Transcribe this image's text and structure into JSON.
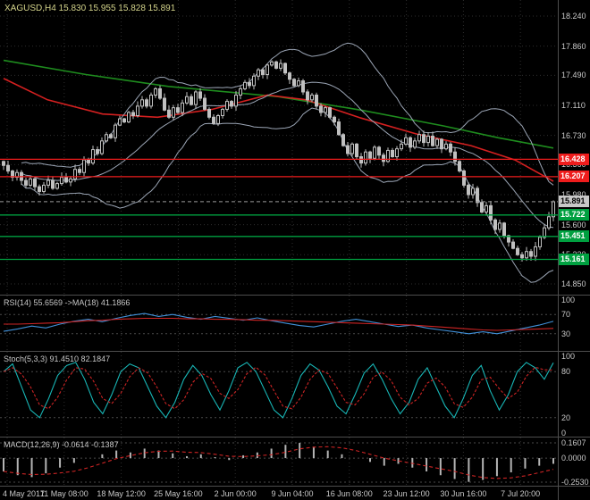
{
  "header": {
    "title": "XAGUSD,H4 15.830 15.955 15.828 15.891"
  },
  "main_chart": {
    "y_ticks": [
      "18.240",
      "17.860",
      "17.490",
      "17.110",
      "16.730",
      "16.360",
      "15.980",
      "15.600",
      "15.220",
      "14.850"
    ]
  },
  "indicators": {
    "rsi": {
      "label": "RSI(14) 55.6569",
      "ma_label": "->MA(18) 41.1866",
      "ticks": [
        "100",
        "70",
        "30"
      ]
    },
    "stoch": {
      "label": "Stoch(5,3,3) 91.4510 82.1847",
      "ticks": [
        "100",
        "80",
        "20",
        "0"
      ]
    },
    "macd": {
      "label": "MACD(12,26,9) -0.0614 -0.1387",
      "ticks": [
        "0.1607",
        "0.0000",
        "-0.2530"
      ]
    }
  },
  "x_axis": {
    "labels": [
      "4 May 2017",
      "11 May 08:00",
      "18 May 12:00",
      "25 May 16:00",
      "2 Jun 00:00",
      "9 Jun 04:00",
      "16 Jun 08:00",
      "23 Jun 12:00",
      "30 Jun 16:00",
      "7 Jul 20:00"
    ]
  },
  "colors": {
    "background": "#000000",
    "grid": "#2e2e2e",
    "candle": "#c0c0c0",
    "bands": "#9ba5b5",
    "red_ma": "#d42020",
    "green_ma": "#1e8c1e",
    "resistance": "#ee1c1c",
    "support": "#00a040",
    "bid_box": "#c8c8c8",
    "rsi": "#4090d8",
    "rsi_ma": "#cc2424",
    "stoch_k": "#18b6b6",
    "stoch_d": "#cc2424",
    "macd_hist": "#b4b4b4",
    "macd_signal": "#cc2424",
    "axis_text": "#c9c9c9",
    "title_text": "#d2d28a",
    "separator": "#4d4d4d"
  },
  "chart_data": {
    "type": "candlestick",
    "symbol": "XAGUSD",
    "timeframe": "H4",
    "title": "XAGUSD,H4",
    "current_ohlc": {
      "open": 15.83,
      "high": 15.955,
      "low": 15.828,
      "close": 15.891
    },
    "ylim": [
      14.85,
      18.24
    ],
    "closes": [
      16.35,
      16.28,
      16.2,
      16.26,
      16.16,
      16.1,
      16.18,
      16.08,
      16.02,
      16.1,
      16.16,
      16.06,
      16.12,
      16.2,
      16.14,
      16.18,
      16.3,
      16.26,
      16.42,
      16.38,
      16.55,
      16.5,
      16.66,
      16.74,
      16.7,
      16.86,
      16.94,
      16.9,
      17.02,
      16.98,
      17.1,
      17.18,
      17.1,
      17.24,
      17.32,
      17.2,
      17.05,
      16.96,
      17.08,
      17.02,
      17.14,
      17.22,
      17.12,
      17.28,
      17.2,
      17.06,
      16.96,
      16.88,
      16.98,
      17.06,
      17.16,
      17.1,
      17.24,
      17.32,
      17.4,
      17.36,
      17.48,
      17.56,
      17.5,
      17.62,
      17.66,
      17.58,
      17.64,
      17.52,
      17.44,
      17.36,
      17.42,
      17.28,
      17.18,
      17.24,
      17.1,
      17.02,
      17.08,
      16.96,
      16.9,
      16.74,
      16.6,
      16.5,
      16.62,
      16.46,
      16.38,
      16.52,
      16.44,
      16.58,
      16.48,
      16.4,
      16.54,
      16.46,
      16.56,
      16.62,
      16.7,
      16.58,
      16.66,
      16.74,
      16.64,
      16.72,
      16.6,
      16.68,
      16.56,
      16.62,
      16.52,
      16.4,
      16.28,
      16.1,
      15.98,
      16.06,
      15.88,
      15.76,
      15.84,
      15.66,
      15.54,
      15.62,
      15.46,
      15.38,
      15.3,
      15.22,
      15.18,
      15.26,
      15.2,
      15.32,
      15.44,
      15.56,
      15.7,
      15.89
    ],
    "overlays": {
      "red_ma": [
        [
          0,
          17.45
        ],
        [
          0.08,
          17.18
        ],
        [
          0.18,
          17.0
        ],
        [
          0.28,
          16.96
        ],
        [
          0.38,
          17.06
        ],
        [
          0.48,
          17.24
        ],
        [
          0.55,
          17.18
        ],
        [
          0.65,
          16.95
        ],
        [
          0.75,
          16.75
        ],
        [
          0.85,
          16.6
        ],
        [
          0.93,
          16.42
        ],
        [
          1,
          16.15
        ]
      ],
      "green_ma": [
        [
          0,
          17.68
        ],
        [
          0.15,
          17.5
        ],
        [
          0.3,
          17.35
        ],
        [
          0.5,
          17.22
        ],
        [
          0.65,
          17.05
        ],
        [
          0.8,
          16.85
        ],
        [
          0.9,
          16.7
        ],
        [
          1,
          16.57
        ]
      ],
      "bollinger": {
        "period": 20,
        "deviation": 2
      }
    },
    "levels": {
      "resistance": [
        "16.428",
        "16.207"
      ],
      "support": [
        "15.722",
        "15.451",
        "15.161"
      ],
      "bid": "15.891"
    },
    "subcharts": [
      {
        "type": "line",
        "name": "RSI(14)",
        "value": 55.6569,
        "ma_value": 41.1866,
        "range": [
          0,
          100
        ],
        "levels": [
          70,
          30
        ],
        "values": [
          35,
          40,
          46,
          42,
          50,
          56,
          60,
          55,
          62,
          68,
          72,
          66,
          70,
          64,
          60,
          66,
          62,
          58,
          63,
          57,
          52,
          47,
          44,
          50,
          56,
          60,
          55,
          50,
          45,
          48,
          42,
          38,
          34,
          30,
          34,
          30,
          36,
          42,
          48,
          55.7
        ],
        "ma_values": [
          50,
          50,
          51,
          52,
          53,
          55,
          57,
          58,
          60,
          61,
          62,
          62,
          62,
          61,
          61,
          60,
          60,
          59,
          58,
          58,
          57,
          56,
          55,
          54,
          53,
          52,
          51,
          50,
          49,
          48,
          46,
          44,
          42,
          40,
          38,
          37,
          38,
          39,
          40,
          41.2
        ]
      },
      {
        "type": "line",
        "name": "Stoch(5,3,3)",
        "k_value": 91.451,
        "d_value": 82.1847,
        "range": [
          0,
          100
        ],
        "levels": [
          80,
          20
        ],
        "k_values": [
          80,
          90,
          60,
          30,
          20,
          45,
          75,
          88,
          92,
          70,
          40,
          25,
          50,
          80,
          90,
          85,
          60,
          35,
          20,
          40,
          70,
          88,
          75,
          50,
          30,
          55,
          85,
          92,
          80,
          55,
          30,
          20,
          45,
          75,
          90,
          82,
          60,
          35,
          25,
          50,
          78,
          90,
          70,
          45,
          25,
          40,
          70,
          85,
          60,
          35,
          20,
          45,
          75,
          88,
          55,
          30,
          50,
          80,
          92,
          85,
          70,
          91.5
        ]
      },
      {
        "type": "bar",
        "name": "MACD(12,26,9)",
        "value": -0.0614,
        "signal_value": -0.1387,
        "range": [
          -0.253,
          0.1607
        ],
        "values": [
          -0.14,
          -0.18,
          -0.2,
          -0.16,
          -0.1,
          -0.05,
          0.0,
          0.04,
          0.08,
          0.06,
          0.1,
          0.08,
          0.05,
          0.02,
          0.04,
          0.01,
          -0.02,
          0.03,
          0.06,
          0.1,
          0.14,
          0.16,
          0.12,
          0.08,
          0.04,
          0.0,
          -0.04,
          -0.08,
          -0.06,
          -0.1,
          -0.14,
          -0.18,
          -0.22,
          -0.25,
          -0.23,
          -0.19,
          -0.15,
          -0.11,
          -0.08,
          -0.06
        ]
      }
    ]
  }
}
